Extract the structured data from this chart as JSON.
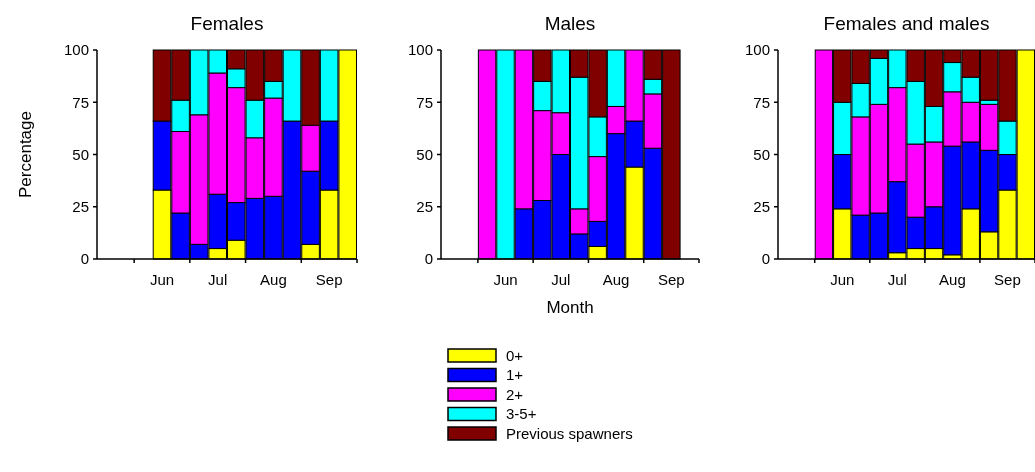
{
  "chart_data": [
    {
      "type": "bar",
      "title": "Females",
      "ylabel": "Percentage",
      "stacked": true,
      "legend": false,
      "grid": false,
      "categories": [
        null,
        null,
        null,
        "Jun",
        null,
        null,
        "Jul",
        null,
        null,
        "Aug",
        null,
        null,
        "Sep",
        null
      ],
      "ylim": [
        0,
        100
      ],
      "yticks": [
        0,
        25,
        50,
        75,
        100
      ],
      "series": [
        {
          "color": "#ffff00",
          "values": [
            null,
            null,
            null,
            33,
            0,
            0,
            5,
            9,
            0,
            0,
            0,
            7,
            33,
            100
          ]
        },
        {
          "color": "#0000ff",
          "values": [
            null,
            null,
            null,
            33,
            22,
            7,
            26,
            18,
            29,
            30,
            66,
            35,
            33,
            0
          ]
        },
        {
          "color": "#ff00ff",
          "values": [
            null,
            null,
            null,
            0,
            39,
            62,
            58,
            55,
            29,
            47,
            0,
            22,
            0,
            0
          ]
        },
        {
          "color": "#00ffff",
          "values": [
            null,
            null,
            null,
            0,
            15,
            31,
            11,
            9,
            18,
            8,
            34,
            0,
            34,
            0
          ]
        },
        {
          "color": "#800000",
          "values": [
            null,
            null,
            null,
            34,
            24,
            0,
            0,
            9,
            24,
            15,
            0,
            36,
            0,
            0
          ]
        }
      ]
    },
    {
      "type": "bar",
      "title": "Males",
      "xlabel": "Month",
      "stacked": true,
      "legend": "bottom",
      "grid": false,
      "categories": [
        null,
        null,
        null,
        "Jun",
        null,
        null,
        "Jul",
        null,
        null,
        "Aug",
        null,
        null,
        "Sep",
        null
      ],
      "ylim": [
        0,
        100
      ],
      "yticks": [
        0,
        25,
        50,
        75,
        100
      ],
      "series": [
        {
          "name": "0+",
          "color": "#ffff00",
          "values": [
            null,
            null,
            0,
            0,
            0,
            0,
            0,
            0,
            6,
            0,
            44,
            0,
            0,
            null
          ]
        },
        {
          "name": "1+",
          "color": "#0000ff",
          "values": [
            null,
            null,
            0,
            0,
            24,
            28,
            50,
            12,
            12,
            60,
            22,
            53,
            0,
            null
          ]
        },
        {
          "name": "2+",
          "color": "#ff00ff",
          "values": [
            null,
            null,
            100,
            0,
            76,
            43,
            20,
            12,
            31,
            13,
            34,
            26,
            0,
            null
          ]
        },
        {
          "name": "3-5+",
          "color": "#00ffff",
          "values": [
            null,
            null,
            0,
            100,
            0,
            14,
            30,
            63,
            19,
            27,
            0,
            7,
            0,
            null
          ]
        },
        {
          "name": "Previous spawners",
          "color": "#800000",
          "values": [
            null,
            null,
            0,
            0,
            0,
            15,
            0,
            13,
            32,
            0,
            0,
            14,
            100,
            null
          ]
        }
      ]
    },
    {
      "type": "bar",
      "title": "Females and males",
      "stacked": true,
      "legend": false,
      "grid": false,
      "categories": [
        null,
        null,
        null,
        "Jun",
        null,
        null,
        "Jul",
        null,
        null,
        "Aug",
        null,
        null,
        "Sep",
        null
      ],
      "ylim": [
        0,
        100
      ],
      "yticks": [
        0,
        25,
        50,
        75,
        100
      ],
      "series": [
        {
          "color": "#ffff00",
          "values": [
            null,
            null,
            0,
            24,
            0,
            0,
            3,
            5,
            5,
            2,
            24,
            13,
            33,
            100
          ]
        },
        {
          "color": "#0000ff",
          "values": [
            null,
            null,
            0,
            26,
            21,
            22,
            34,
            15,
            20,
            52,
            32,
            39,
            17,
            0
          ]
        },
        {
          "color": "#ff00ff",
          "values": [
            null,
            null,
            100,
            0,
            47,
            52,
            45,
            35,
            31,
            26,
            19,
            22,
            0,
            0
          ]
        },
        {
          "color": "#00ffff",
          "values": [
            null,
            null,
            0,
            25,
            16,
            22,
            18,
            30,
            17,
            14,
            12,
            2,
            16,
            0
          ]
        },
        {
          "color": "#800000",
          "values": [
            null,
            null,
            0,
            25,
            16,
            4,
            0,
            15,
            27,
            6,
            13,
            24,
            34,
            0
          ]
        }
      ]
    }
  ]
}
